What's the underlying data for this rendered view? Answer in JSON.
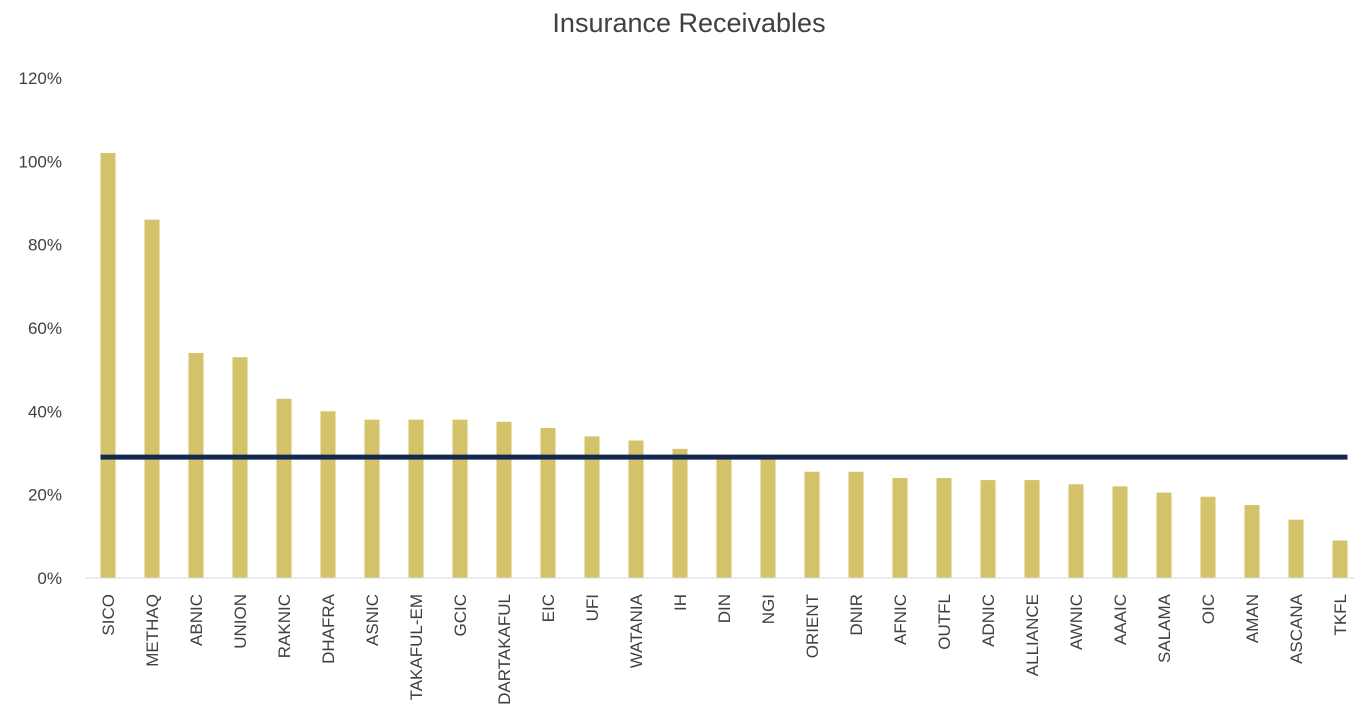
{
  "chart_data": {
    "type": "bar",
    "title": "Insurance Receivables",
    "xlabel": "",
    "ylabel": "",
    "ylim": [
      0,
      1.2
    ],
    "yticks": [
      "0%",
      "20%",
      "40%",
      "60%",
      "80%",
      "100%",
      "120%"
    ],
    "categories": [
      "SICO",
      "METHAQ",
      "ABNIC",
      "UNION",
      "RAKNIC",
      "DHAFRA",
      "ASNIC",
      "TAKAFUL-EM",
      "GCIC",
      "DARTAKAFUL",
      "EIC",
      "UFI",
      "WATANIA",
      "IH",
      "DIN",
      "NGI",
      "ORIENT",
      "DNIR",
      "AFNIC",
      "OUTFL",
      "ADNIC",
      "ALLIANCE",
      "AWNIC",
      "AAAIC",
      "SALAMA",
      "OIC",
      "AMAN",
      "ASCANA",
      "TKFL"
    ],
    "values": [
      1.02,
      0.86,
      0.54,
      0.53,
      0.43,
      0.4,
      0.38,
      0.38,
      0.38,
      0.375,
      0.36,
      0.34,
      0.33,
      0.31,
      0.29,
      0.285,
      0.255,
      0.255,
      0.24,
      0.24,
      0.235,
      0.235,
      0.225,
      0.22,
      0.205,
      0.195,
      0.175,
      0.14,
      0.09
    ],
    "reference_line": 0.29,
    "grid": false,
    "legend": "none",
    "colors": {
      "bar": "#D4C36A",
      "reference_line": "#14274E",
      "axis": "#D9D9D9",
      "text": "#404040"
    }
  }
}
